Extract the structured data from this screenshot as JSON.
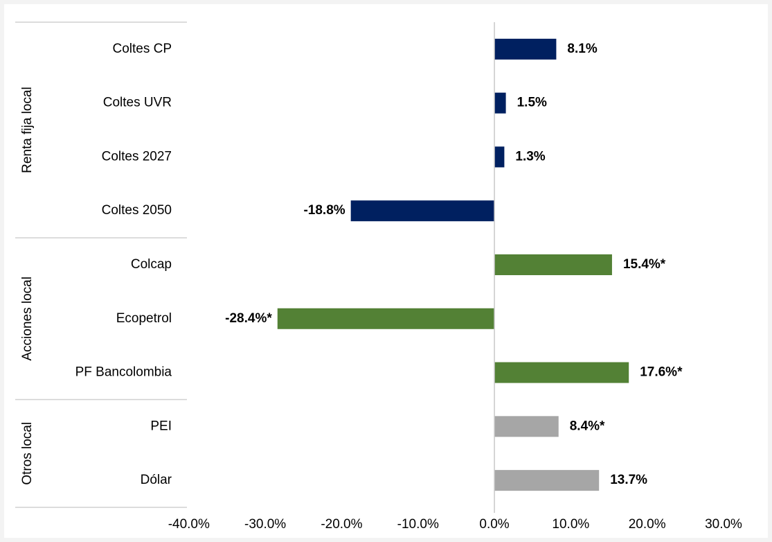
{
  "chart_data": {
    "type": "bar",
    "orientation": "horizontal",
    "groups": [
      {
        "label": "Renta fija local",
        "color": "#002060",
        "categories": [
          "Coltes CP",
          "Coltes UVR",
          "Coltes 2027",
          "Coltes 2050"
        ],
        "values": [
          8.1,
          1.5,
          1.3,
          -18.8
        ],
        "value_labels": [
          "8.1%",
          "1.5%",
          "1.3%",
          "-18.8%"
        ]
      },
      {
        "label": "Acciones local",
        "color": "#538135",
        "categories": [
          "Colcap",
          "Ecopetrol",
          "PF Bancolombia"
        ],
        "values": [
          15.4,
          -28.4,
          17.6
        ],
        "value_labels": [
          "15.4%*",
          "-28.4%*",
          "17.6%*"
        ]
      },
      {
        "label": "Otros local",
        "color": "#a6a6a6",
        "categories": [
          "PEI",
          "Dólar"
        ],
        "values": [
          8.4,
          13.7
        ],
        "value_labels": [
          "8.4%*",
          "13.7%"
        ]
      }
    ],
    "xlim": [
      -40,
      30
    ],
    "xticks": [
      {
        "value": -40,
        "label": "-40.0%"
      },
      {
        "value": -30,
        "label": "-30.0%"
      },
      {
        "value": -20,
        "label": "-20.0%"
      },
      {
        "value": -10,
        "label": "-10.0%"
      },
      {
        "value": 0,
        "label": "0.0%"
      },
      {
        "value": 10,
        "label": "10.0%"
      },
      {
        "value": 20,
        "label": "20.0%"
      },
      {
        "value": 30,
        "label": "30.0%"
      }
    ]
  }
}
